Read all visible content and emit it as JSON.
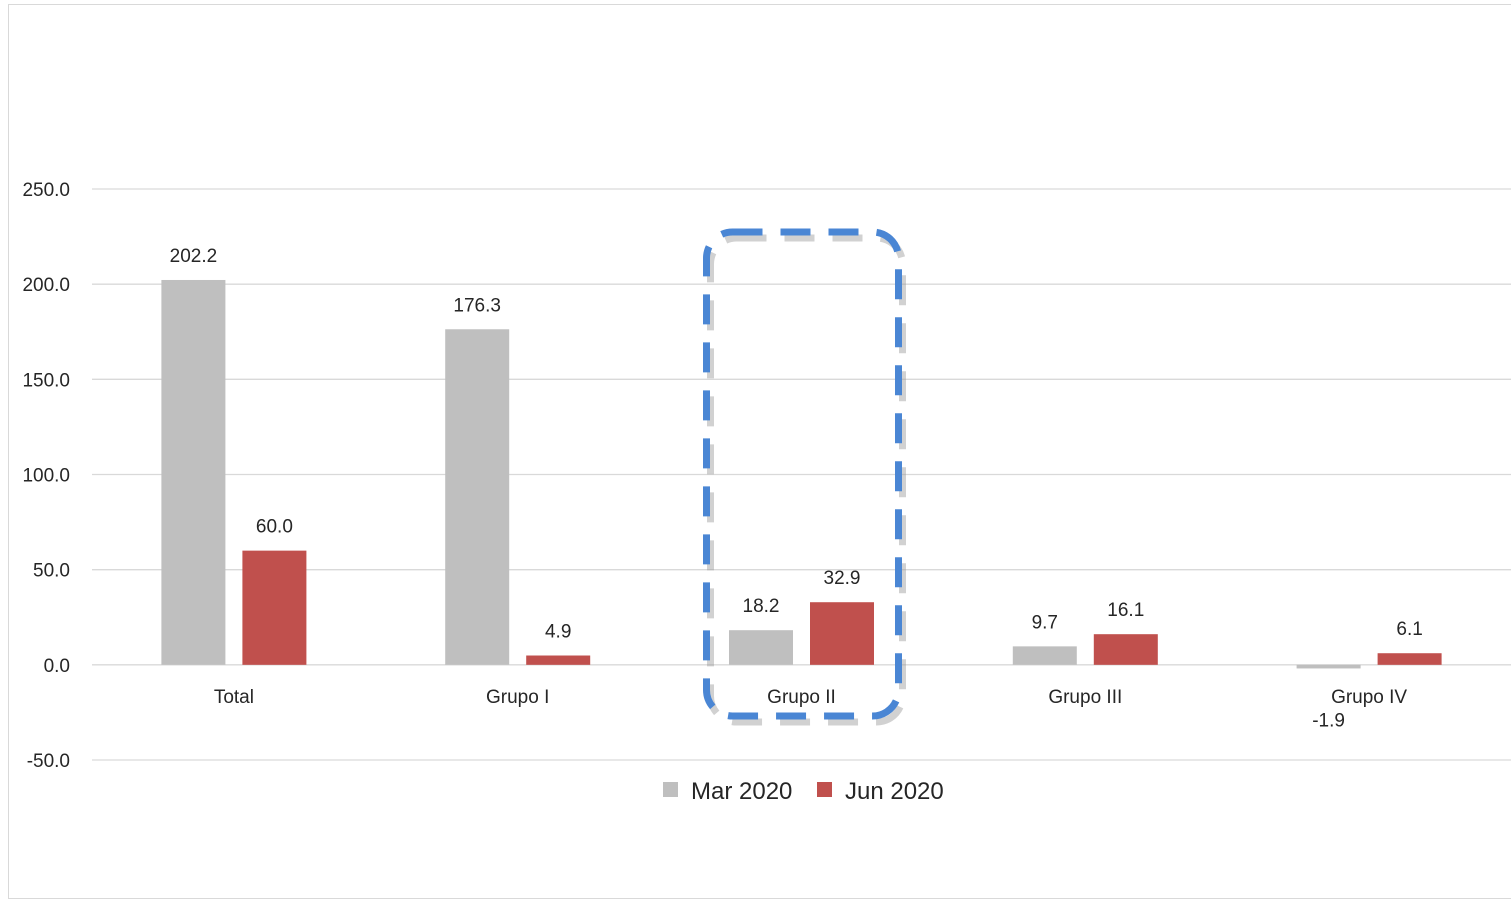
{
  "chart_data": {
    "type": "bar",
    "categories": [
      "Total",
      "Grupo I",
      "Grupo II",
      "Grupo III",
      "Grupo IV"
    ],
    "series": [
      {
        "name": "Mar 2020",
        "color": "#bfbfbf",
        "values": [
          202.2,
          176.3,
          18.2,
          9.7,
          -1.9
        ]
      },
      {
        "name": "Jun 2020",
        "color": "#c0504d",
        "values": [
          60.0,
          4.9,
          32.9,
          16.1,
          6.1
        ]
      }
    ],
    "ylim": [
      -50,
      250
    ],
    "yticks": [
      "250.0",
      "200.0",
      "150.0",
      "100.0",
      "50.0",
      "0.0",
      "-50.0"
    ],
    "grid": true,
    "legend": "bottom",
    "highlight": {
      "category": "Grupo II",
      "style": "dashed",
      "color": "#4a86d4"
    }
  }
}
